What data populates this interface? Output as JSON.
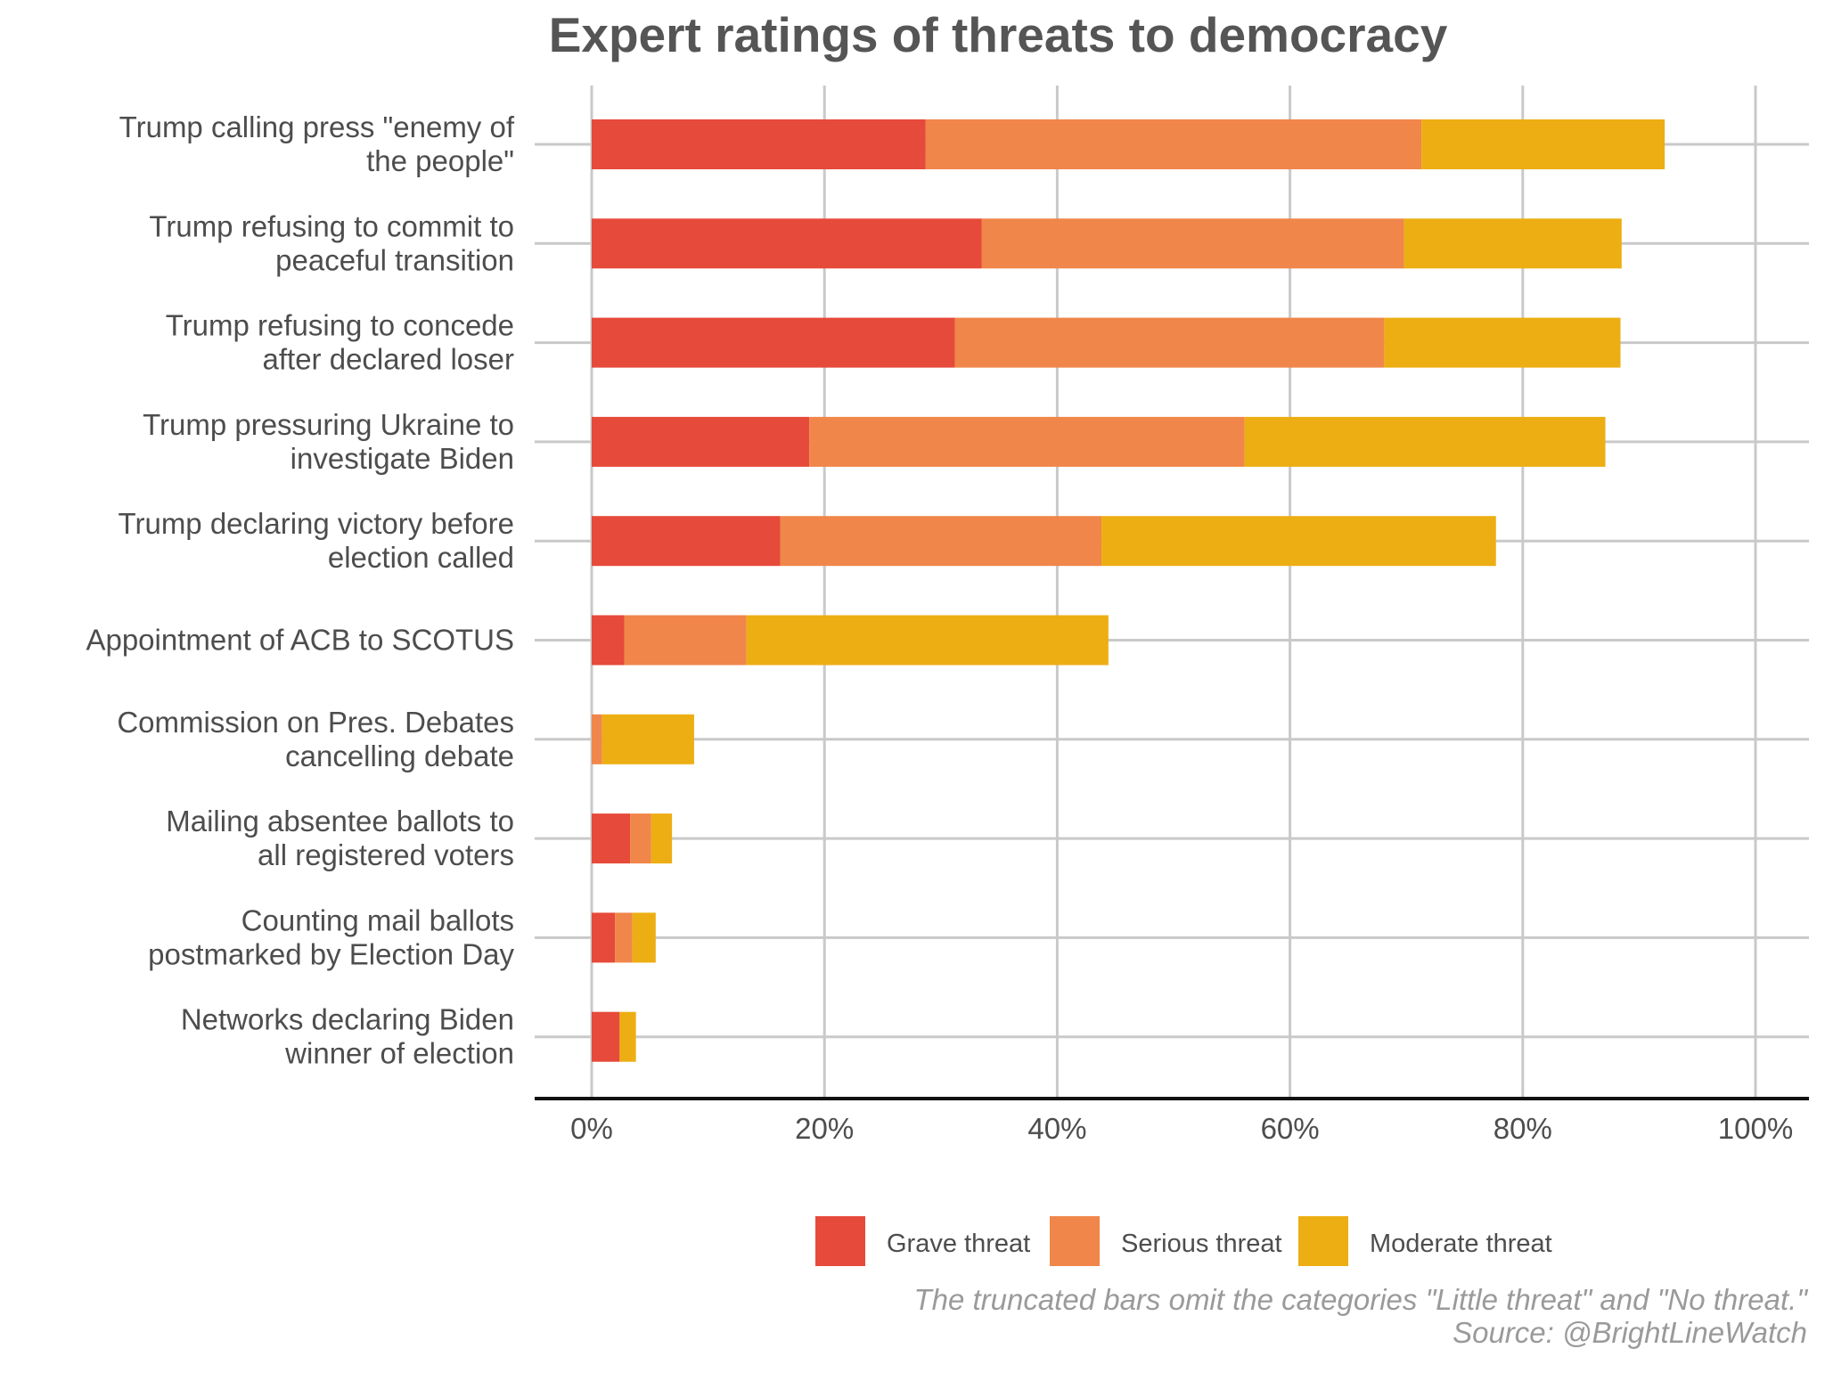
{
  "chart_data": {
    "type": "bar",
    "orientation": "horizontal",
    "stacked": true,
    "title": "Expert ratings of threats to democracy",
    "categories": [
      [
        "Trump calling press \"enemy of",
        "the people\""
      ],
      [
        "Trump refusing to commit to",
        "peaceful transition"
      ],
      [
        "Trump refusing to concede",
        "after declared loser"
      ],
      [
        "Trump pressuring Ukraine to",
        "investigate Biden"
      ],
      [
        "Trump declaring victory before",
        "election called"
      ],
      [
        "Appointment of ACB to SCOTUS"
      ],
      [
        "Commission on Pres. Debates",
        "cancelling debate"
      ],
      [
        "Mailing absentee ballots to",
        "all registered voters"
      ],
      [
        "Counting mail ballots",
        "postmarked by Election Day"
      ],
      [
        "Networks declaring Biden",
        "winner of election"
      ]
    ],
    "series": [
      {
        "name": "Grave threat",
        "color": "#E64A3A",
        "values": [
          28.7,
          33.5,
          31.2,
          18.7,
          16.2,
          2.8,
          0.0,
          3.3,
          2.0,
          2.4
        ]
      },
      {
        "name": "Serious threat",
        "color": "#F0864A",
        "values": [
          42.6,
          36.3,
          36.9,
          37.4,
          27.6,
          10.5,
          0.9,
          1.8,
          1.5,
          0.0
        ]
      },
      {
        "name": "Moderate threat",
        "color": "#ECAE13",
        "values": [
          20.9,
          18.7,
          20.3,
          31.0,
          33.9,
          31.1,
          7.9,
          1.8,
          2.0,
          1.4
        ]
      }
    ],
    "x_ticks": [
      "0%",
      "20%",
      "40%",
      "60%",
      "80%",
      "100%"
    ],
    "xlim": [
      0,
      100
    ],
    "grid": true,
    "legend_position": "bottom",
    "caption_lines": [
      "The truncated bars omit the categories \"Little threat\" and \"No threat.\"",
      "Source: @BrightLineWatch"
    ]
  }
}
